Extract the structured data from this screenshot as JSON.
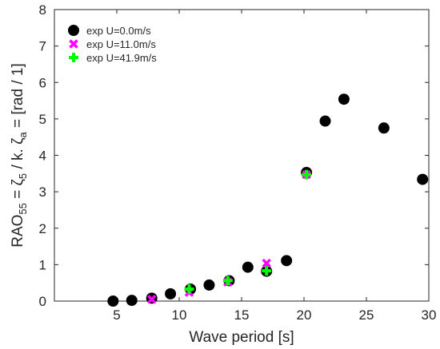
{
  "chart_data": {
    "type": "scatter",
    "xlabel": "Wave period [s]",
    "ylabel": {
      "pre": "RAO",
      "pre_sub": "55",
      "eq1": " = ζ",
      "eq1_sub": "5",
      "mid": " / k. ζ",
      "mid_sub": "a",
      "post": " = [rad / 1]"
    },
    "xlim": [
      0,
      30
    ],
    "ylim": [
      0,
      8
    ],
    "xticks": [
      5,
      10,
      15,
      20,
      25,
      30
    ],
    "yticks": [
      0,
      1,
      2,
      3,
      4,
      5,
      6,
      7,
      8
    ],
    "grid": false,
    "legend_position": "top-left",
    "series": [
      {
        "name": "exp U=0.0m/s",
        "marker": "circle",
        "color": "#000000",
        "points": [
          [
            4.7,
            0.0
          ],
          [
            6.2,
            0.02
          ],
          [
            7.8,
            0.08
          ],
          [
            9.3,
            0.2
          ],
          [
            10.9,
            0.33
          ],
          [
            12.4,
            0.44
          ],
          [
            14.0,
            0.56
          ],
          [
            15.5,
            0.93
          ],
          [
            17.0,
            0.82
          ],
          [
            18.6,
            1.11
          ],
          [
            20.2,
            3.53
          ],
          [
            21.7,
            4.94
          ],
          [
            23.2,
            5.54
          ],
          [
            26.4,
            4.75
          ],
          [
            29.5,
            3.34
          ]
        ]
      },
      {
        "name": "exp U=11.0m/s",
        "marker": "x",
        "color": "#ff00ff",
        "points": [
          [
            7.8,
            0.05
          ],
          [
            10.8,
            0.24
          ],
          [
            13.9,
            0.52
          ],
          [
            17.0,
            1.04
          ],
          [
            20.2,
            3.47
          ]
        ]
      },
      {
        "name": "exp U=41.9m/s",
        "marker": "plus",
        "color": "#00ff00",
        "points": [
          [
            10.8,
            0.33
          ],
          [
            13.9,
            0.56
          ],
          [
            17.0,
            0.83
          ],
          [
            20.2,
            3.47
          ]
        ]
      }
    ]
  }
}
